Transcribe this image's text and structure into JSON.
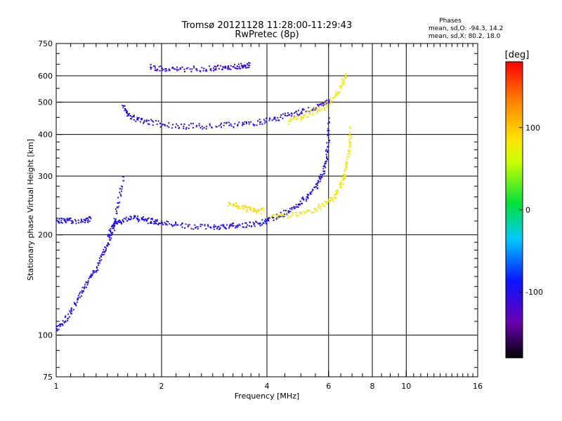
{
  "chart_data": {
    "type": "scatter",
    "title": "Tromsø 20121128 11:28:00-11:29:43",
    "subtitle": "RwPretec (8p)",
    "xlabel": "Frequency [MHz]",
    "ylabel": "Stationary phase Virtual Height [km]",
    "x_scale": "log",
    "y_scale": "log",
    "xlim": [
      1,
      16
    ],
    "ylim": [
      75,
      750
    ],
    "x_ticks": [
      1,
      2,
      4,
      6,
      8,
      10,
      16
    ],
    "x_tick_labels": [
      "1",
      "2",
      "4",
      "6",
      "8",
      "10",
      "16"
    ],
    "y_ticks": [
      75,
      100,
      200,
      300,
      400,
      500,
      600,
      750
    ],
    "y_tick_labels": [
      "75",
      "100",
      "200",
      "300",
      "400",
      "500",
      "600",
      "750"
    ],
    "x_major_gridlines": [
      2,
      4,
      6,
      8,
      10
    ],
    "y_major_gridlines": [
      100,
      200,
      300,
      400,
      500,
      600
    ],
    "grid": true,
    "color_variable": "Phase [deg]",
    "stats_header": "Phases",
    "stats": [
      "mean, sd,O: -94.3, 14.2",
      "mean, sd,X:  80.2, 18.0"
    ],
    "colorbar": {
      "label": "[deg]",
      "range": [
        -180,
        180
      ],
      "ticks": [
        100,
        0,
        -100
      ],
      "tick_labels": [
        "100",
        "0",
        "-100"
      ]
    },
    "traces": [
      {
        "desc": "O-mode F-layer trace (blue)",
        "phase": -100,
        "x": [
          1.4,
          1.45,
          1.5,
          1.6,
          1.7,
          1.8,
          1.9,
          2.0,
          2.2,
          2.5,
          2.8,
          3.0,
          3.2,
          3.5,
          3.8,
          4.0,
          4.3,
          4.6,
          4.9,
          5.2,
          5.5,
          5.7,
          5.85,
          5.95,
          6.0
        ],
        "y": [
          200,
          215,
          220,
          225,
          225,
          222,
          220,
          218,
          215,
          212,
          212,
          213,
          214,
          215,
          218,
          222,
          228,
          236,
          248,
          260,
          280,
          300,
          330,
          370,
          450
        ]
      },
      {
        "desc": "X-mode F-layer trace (yellow)",
        "phase": 80,
        "x": [
          4.1,
          4.5,
          5.0,
          5.5,
          5.9,
          6.2,
          6.45,
          6.6,
          6.75,
          6.85,
          6.9
        ],
        "y": [
          228,
          230,
          234,
          240,
          250,
          260,
          280,
          300,
          330,
          370,
          420
        ]
      },
      {
        "desc": "Multiple-hop echo (blue)",
        "phase": -100,
        "x": [
          1.55,
          1.6,
          1.7,
          1.8,
          2.0,
          2.3,
          2.6,
          3.0,
          3.4,
          3.8,
          4.2,
          4.6,
          5.0,
          5.4,
          5.8,
          6.0
        ],
        "y": [
          490,
          460,
          445,
          440,
          430,
          425,
          425,
          428,
          432,
          438,
          448,
          460,
          470,
          480,
          495,
          510
        ]
      },
      {
        "desc": "Multiple-hop X-mode echo (yellow)",
        "phase": 80,
        "x": [
          4.6,
          5.0,
          5.4,
          5.8,
          6.2,
          6.5,
          6.7
        ],
        "y": [
          440,
          455,
          470,
          485,
          520,
          560,
          610
        ]
      },
      {
        "desc": "Top echo band (blue-violet)",
        "phase": -110,
        "x": [
          1.85,
          2.0,
          2.2,
          2.5,
          2.8,
          3.0,
          3.2,
          3.4,
          3.55
        ],
        "y": [
          640,
          635,
          630,
          632,
          636,
          640,
          643,
          646,
          648
        ]
      },
      {
        "desc": "E-region / low-frequency scatter (blue)",
        "phase": -100,
        "x": [
          1.0,
          1.05,
          1.1,
          1.15,
          1.2,
          1.25,
          1.3,
          1.35,
          1.4,
          1.45,
          1.5,
          1.55
        ],
        "y": [
          105,
          110,
          120,
          130,
          140,
          150,
          160,
          175,
          190,
          210,
          250,
          300
        ]
      },
      {
        "desc": "Horizontal low band near 220 km (blue)",
        "phase": -100,
        "x": [
          1.0,
          1.05,
          1.1,
          1.2,
          1.25
        ],
        "y": [
          222,
          222,
          221,
          222,
          225
        ]
      },
      {
        "desc": "Sporadic echoes near 260 km (yellow/orange)",
        "phase": 90,
        "x": [
          3.1,
          3.3,
          3.5,
          3.7,
          3.9
        ],
        "y": [
          250,
          245,
          240,
          238,
          237
        ]
      }
    ]
  }
}
